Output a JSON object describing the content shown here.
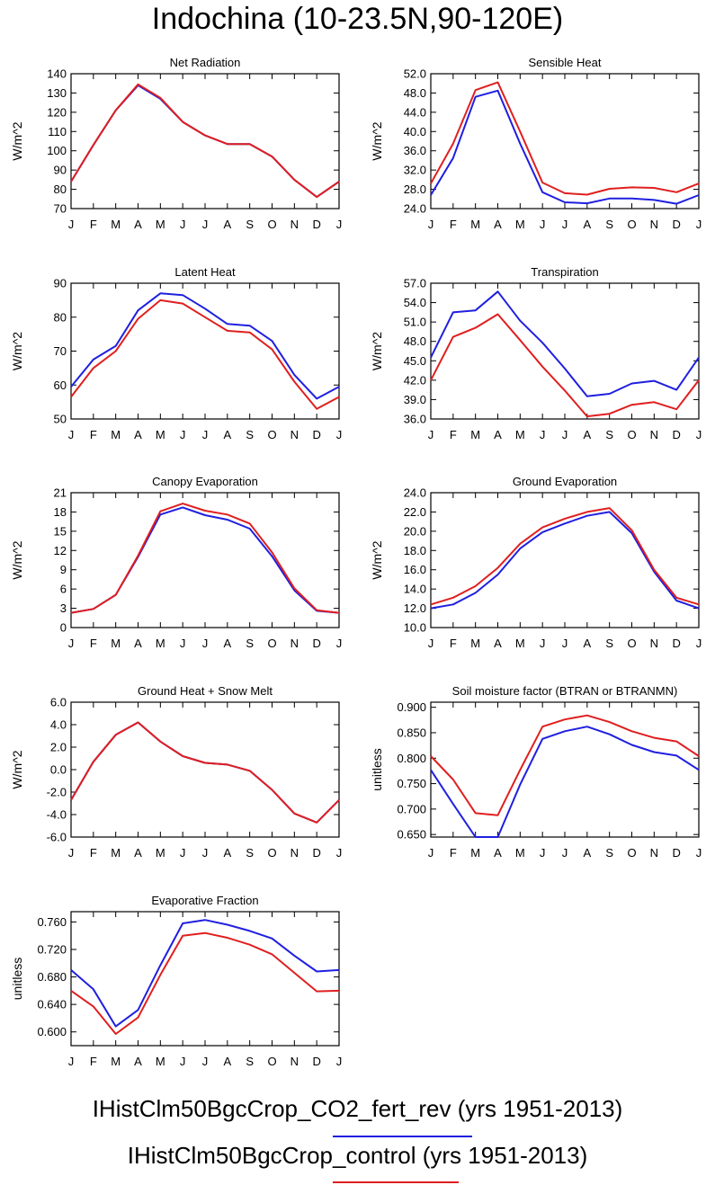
{
  "title": "Indochina (10-23.5N,90-120E)",
  "colors": {
    "series_1": "#1f1fe0",
    "series_2": "#e01f1f"
  },
  "legend": [
    {
      "label": "IHistClm50BgcCrop_CO2_fert_rev (yrs 1951-2013)",
      "color": "#1f1fe0"
    },
    {
      "label": "IHistClm50BgcCrop_control (yrs 1951-2013)",
      "color": "#e01f1f"
    }
  ],
  "chart_data": [
    {
      "type": "line",
      "title": "Net Radiation",
      "xlabel": "",
      "ylabel": "W/m^2",
      "categories": [
        "J",
        "F",
        "M",
        "A",
        "M",
        "J",
        "J",
        "A",
        "S",
        "O",
        "N",
        "D",
        "J"
      ],
      "ylim": [
        70,
        140
      ],
      "yticks": [
        "70",
        "80",
        "90",
        "100",
        "110",
        "120",
        "130",
        "140"
      ],
      "series": [
        {
          "values": [
            84,
            103,
            121,
            134,
            127,
            115,
            108,
            103.5,
            103.5,
            97,
            85,
            76,
            84
          ]
        },
        {
          "values": [
            84,
            103,
            121,
            134.5,
            127.5,
            115,
            108,
            103.5,
            103.5,
            97,
            85,
            76,
            84
          ]
        }
      ]
    },
    {
      "type": "line",
      "title": "Sensible Heat",
      "xlabel": "",
      "ylabel": "W/m^2",
      "categories": [
        "J",
        "F",
        "M",
        "A",
        "M",
        "J",
        "J",
        "A",
        "S",
        "O",
        "N",
        "D",
        "J"
      ],
      "ylim": [
        24,
        52
      ],
      "yticks": [
        "24.0",
        "28.0",
        "32.0",
        "36.0",
        "40.0",
        "44.0",
        "48.0",
        "52.0"
      ],
      "series": [
        {
          "values": [
            26.8,
            34.5,
            47.2,
            48.5,
            37.5,
            27.4,
            25.3,
            25.1,
            26.1,
            26.1,
            25.8,
            25,
            26.8
          ]
        },
        {
          "values": [
            29.2,
            37.5,
            48.6,
            50.2,
            40,
            29.4,
            27.2,
            26.9,
            28.1,
            28.4,
            28.3,
            27.4,
            29.2
          ]
        }
      ]
    },
    {
      "type": "line",
      "title": "Latent Heat",
      "xlabel": "",
      "ylabel": "W/m^2",
      "categories": [
        "J",
        "F",
        "M",
        "A",
        "M",
        "J",
        "J",
        "A",
        "S",
        "O",
        "N",
        "D",
        "J"
      ],
      "ylim": [
        50,
        90
      ],
      "yticks": [
        "50",
        "60",
        "70",
        "80",
        "90"
      ],
      "series": [
        {
          "values": [
            59.5,
            67.5,
            71.5,
            82,
            87,
            86.5,
            82.5,
            78,
            77.5,
            73,
            63,
            56,
            59.5
          ]
        },
        {
          "values": [
            56.5,
            65,
            70,
            79.5,
            85,
            84,
            80,
            76,
            75.5,
            70.5,
            61,
            53,
            56.5
          ]
        }
      ]
    },
    {
      "type": "line",
      "title": "Transpiration",
      "xlabel": "",
      "ylabel": "W/m^2",
      "categories": [
        "J",
        "F",
        "M",
        "A",
        "M",
        "J",
        "J",
        "A",
        "S",
        "O",
        "N",
        "D",
        "J"
      ],
      "ylim": [
        36,
        57
      ],
      "yticks": [
        "36.0",
        "39.0",
        "42.0",
        "45.0",
        "48.0",
        "51.0",
        "54.0",
        "57.0"
      ],
      "series": [
        {
          "values": [
            45.5,
            52.5,
            52.8,
            55.7,
            51.2,
            47.8,
            43.8,
            39.5,
            39.9,
            41.5,
            41.9,
            40.5,
            45.5
          ]
        },
        {
          "values": [
            42,
            48.7,
            50.1,
            52.2,
            48.2,
            44.1,
            40.4,
            36.4,
            36.8,
            38.2,
            38.6,
            37.5,
            42
          ]
        }
      ]
    },
    {
      "type": "line",
      "title": "Canopy Evaporation",
      "xlabel": "",
      "ylabel": "W/m^2",
      "categories": [
        "J",
        "F",
        "M",
        "A",
        "M",
        "J",
        "J",
        "A",
        "S",
        "O",
        "N",
        "D",
        "J"
      ],
      "ylim": [
        0,
        21
      ],
      "yticks": [
        "0",
        "3",
        "6",
        "9",
        "12",
        "15",
        "18",
        "21"
      ],
      "series": [
        {
          "values": [
            2.3,
            2.9,
            5.1,
            11,
            17.6,
            18.7,
            17.5,
            16.8,
            15.4,
            11.1,
            5.8,
            2.6,
            2.3
          ]
        },
        {
          "values": [
            2.3,
            2.9,
            5.1,
            11.2,
            18.1,
            19.3,
            18.2,
            17.6,
            16.2,
            11.7,
            6.1,
            2.7,
            2.3
          ]
        }
      ]
    },
    {
      "type": "line",
      "title": "Ground Evaporation",
      "xlabel": "",
      "ylabel": "W/m^2",
      "categories": [
        "J",
        "F",
        "M",
        "A",
        "M",
        "J",
        "J",
        "A",
        "S",
        "O",
        "N",
        "D",
        "J"
      ],
      "ylim": [
        10,
        24
      ],
      "yticks": [
        "10.0",
        "12.0",
        "14.0",
        "16.0",
        "18.0",
        "20.0",
        "22.0",
        "24.0"
      ],
      "series": [
        {
          "values": [
            12,
            12.4,
            13.6,
            15.5,
            18.2,
            19.9,
            20.8,
            21.6,
            22,
            19.8,
            15.8,
            12.8,
            12
          ]
        },
        {
          "values": [
            12.4,
            13.1,
            14.3,
            16.2,
            18.7,
            20.4,
            21.3,
            22,
            22.4,
            20.1,
            16,
            13.1,
            12.4
          ]
        }
      ]
    },
    {
      "type": "line",
      "title": "Ground Heat + Snow Melt",
      "xlabel": "",
      "ylabel": "W/m^2",
      "categories": [
        "J",
        "F",
        "M",
        "A",
        "M",
        "J",
        "J",
        "A",
        "S",
        "O",
        "N",
        "D",
        "J"
      ],
      "ylim": [
        -6,
        6
      ],
      "yticks": [
        "-6.0",
        "-4.0",
        "-2.0",
        "0.0",
        "2.0",
        "4.0",
        "6.0"
      ],
      "series": [
        {
          "values": [
            -2.7,
            0.7,
            3.1,
            4.2,
            2.5,
            1.2,
            0.6,
            0.45,
            -0.1,
            -1.8,
            -3.9,
            -4.7,
            -2.7
          ]
        },
        {
          "values": [
            -2.7,
            0.7,
            3.1,
            4.2,
            2.5,
            1.2,
            0.6,
            0.45,
            -0.1,
            -1.8,
            -3.9,
            -4.7,
            -2.7
          ]
        }
      ]
    },
    {
      "type": "line",
      "title": "Soil moisture factor (BTRAN or BTRANMN)",
      "xlabel": "",
      "ylabel": "unitless",
      "categories": [
        "J",
        "F",
        "M",
        "A",
        "M",
        "J",
        "J",
        "A",
        "S",
        "O",
        "N",
        "D",
        "J"
      ],
      "ylim": [
        0.645,
        0.91
      ],
      "yticks": [
        "0.650",
        "0.700",
        "0.750",
        "0.800",
        "0.850",
        "0.900"
      ],
      "series": [
        {
          "values": [
            0.777,
            0.71,
            0.641,
            0.641,
            0.748,
            0.838,
            0.853,
            0.862,
            0.847,
            0.826,
            0.812,
            0.805,
            0.777
          ]
        },
        {
          "values": [
            0.804,
            0.758,
            0.692,
            0.688,
            0.777,
            0.862,
            0.876,
            0.884,
            0.871,
            0.853,
            0.84,
            0.833,
            0.804
          ]
        }
      ]
    },
    {
      "type": "line",
      "title": "Evaporative Fraction",
      "xlabel": "",
      "ylabel": "unitless",
      "categories": [
        "J",
        "F",
        "M",
        "A",
        "M",
        "J",
        "J",
        "A",
        "S",
        "O",
        "N",
        "D",
        "J"
      ],
      "ylim": [
        0.58,
        0.775
      ],
      "yticks": [
        "0.600",
        "0.640",
        "0.680",
        "0.720",
        "0.760"
      ],
      "series": [
        {
          "values": [
            0.69,
            0.662,
            0.608,
            0.632,
            0.697,
            0.758,
            0.763,
            0.756,
            0.747,
            0.736,
            0.711,
            0.688,
            0.69
          ]
        },
        {
          "values": [
            0.66,
            0.637,
            0.597,
            0.621,
            0.683,
            0.74,
            0.744,
            0.737,
            0.727,
            0.713,
            0.686,
            0.659,
            0.66
          ]
        }
      ]
    }
  ]
}
